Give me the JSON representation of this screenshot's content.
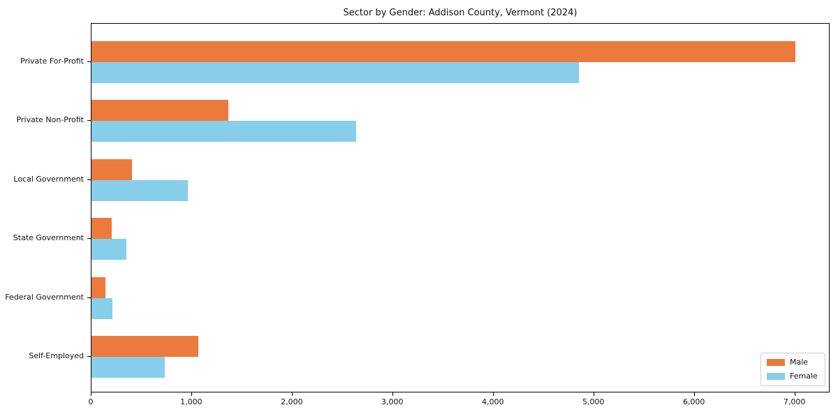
{
  "title": "Sector by Gender: Addison County, Vermont (2024)",
  "legend": {
    "position": "lower right",
    "items": [
      {
        "label": "Male",
        "color": "#EC7A3C"
      },
      {
        "label": "Female",
        "color": "#87CEEB"
      }
    ]
  },
  "chart_data": {
    "type": "bar",
    "orientation": "horizontal",
    "title": "Sector by Gender: Addison County, Vermont (2024)",
    "xlabel": "",
    "ylabel": "",
    "grid": false,
    "legend_position": "lower right",
    "categories": [
      "Private For-Profit",
      "Private Non-Profit",
      "Local Government",
      "State Government",
      "Federal Government",
      "Self-Employed"
    ],
    "series": [
      {
        "name": "Male",
        "color": "#EC7A3C",
        "values": [
          7000,
          1360,
          400,
          200,
          140,
          1060
        ]
      },
      {
        "name": "Female",
        "color": "#87CEEB",
        "values": [
          4850,
          2630,
          960,
          350,
          210,
          730
        ]
      }
    ],
    "xlim": [
      0,
      7350
    ],
    "xticks": [
      0,
      1000,
      2000,
      3000,
      4000,
      5000,
      6000,
      7000
    ],
    "xtick_labels": [
      "0",
      "1,000",
      "2,000",
      "3,000",
      "4,000",
      "5,000",
      "6,000",
      "7,000"
    ]
  }
}
